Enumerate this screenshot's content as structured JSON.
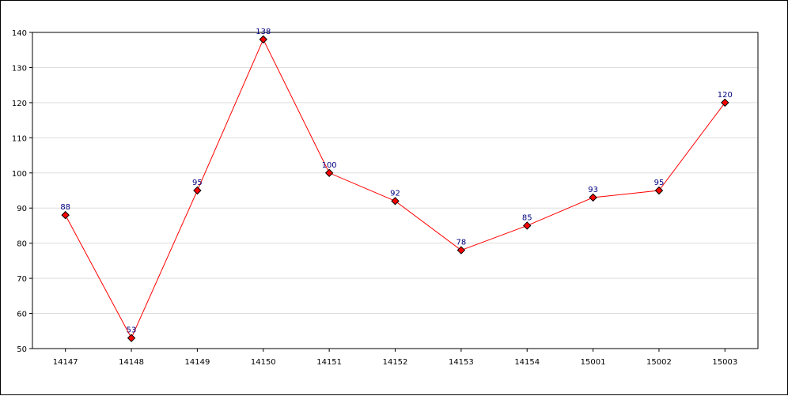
{
  "chart_data": {
    "type": "line",
    "title": "",
    "xlabel": "",
    "ylabel": "",
    "categories": [
      "14147",
      "14148",
      "14149",
      "14150",
      "14151",
      "14152",
      "14153",
      "14154",
      "15001",
      "15002",
      "15003"
    ],
    "series": [
      {
        "values": [
          88,
          53,
          95,
          138,
          100,
          92,
          78,
          85,
          93,
          95,
          120
        ],
        "line_color": "#ff0000",
        "marker_color": "#ff0000",
        "marker": "diamond"
      }
    ],
    "ylim": [
      50,
      140
    ],
    "yticks": [
      50,
      60,
      70,
      80,
      90,
      100,
      110,
      120,
      130,
      140
    ],
    "grid": true,
    "legend": "none",
    "colors": {
      "grid": "#dddddd",
      "axis": "#000000",
      "label": "#000080"
    }
  }
}
